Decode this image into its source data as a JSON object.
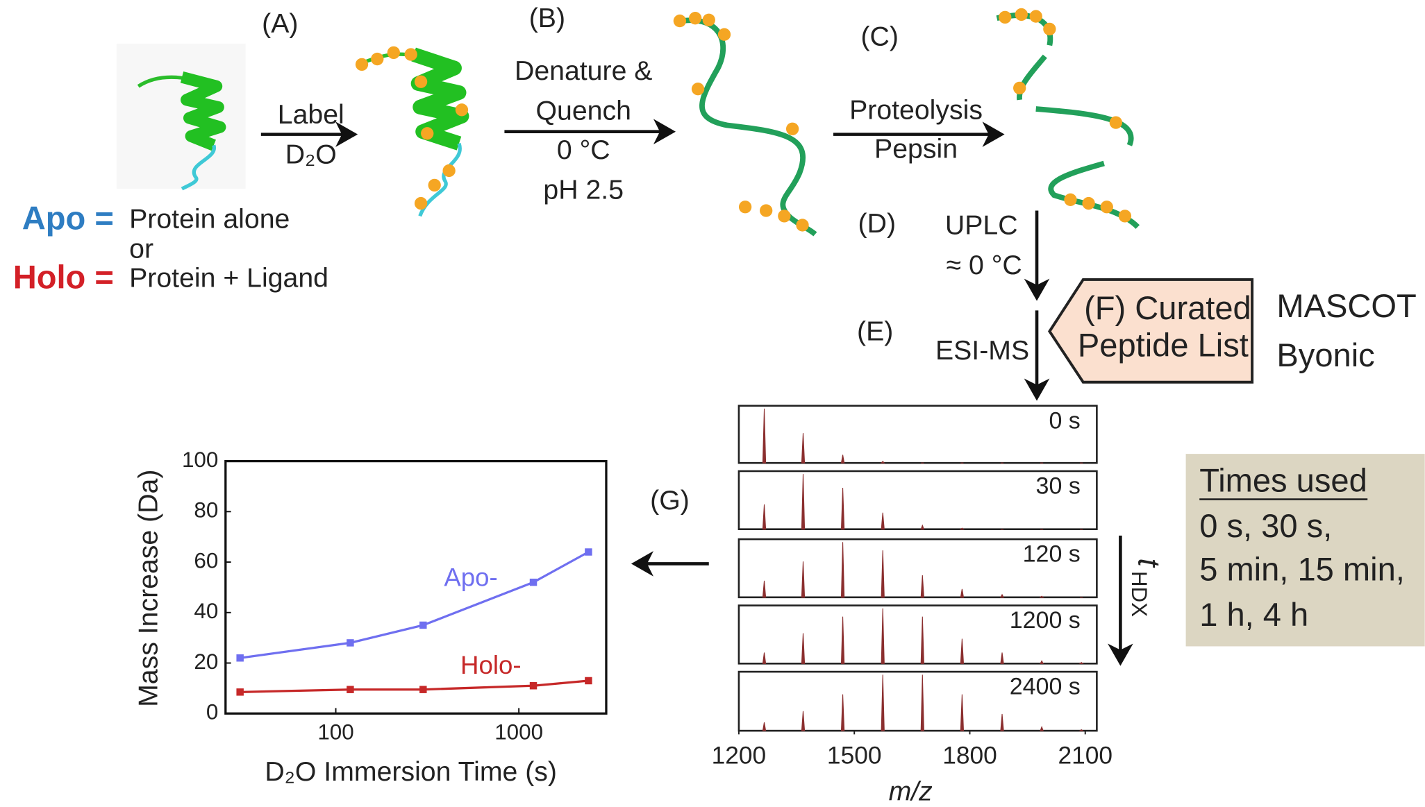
{
  "diagram": {
    "steps": {
      "a": "(A)",
      "b": "(B)",
      "c": "(C)",
      "d": "(D)",
      "e": "(E)",
      "g": "(G)"
    },
    "label_step": [
      "Label",
      "D₂O"
    ],
    "quench_step": [
      "Denature &",
      "Quench",
      "0 °C",
      "pH 2.5"
    ],
    "digest_step": [
      "Proteolysis",
      "Pepsin"
    ],
    "uplc_step": [
      "UPLC",
      "≈ 0 °C"
    ],
    "ms_step": "ESI-MS",
    "peptide_list": [
      "(F) Curated",
      "Peptide List"
    ],
    "search_tools": [
      "MASCOT",
      "Byonic"
    ],
    "legend": {
      "apo": "Apo =",
      "apo_text": "Protein alone",
      "or": "or",
      "holo": "Holo =",
      "holo_text": "Protein + Ligand"
    },
    "times_box": {
      "title": "Times used",
      "lines": [
        "0 s, 30 s,",
        "5 min, 15 min,",
        "1 h, 4 h"
      ]
    },
    "time_axis": {
      "symbol": "t",
      "subscript": "HDX"
    }
  },
  "chart_data": [
    {
      "type": "line",
      "log_x": true,
      "x_label": "D₂O Immersion Time (s)",
      "y_label": "Mass Increase (Da)",
      "x": [
        30,
        120,
        300,
        1200,
        2400
      ],
      "xlim": [
        25,
        3000
      ],
      "xticks": [
        100,
        1000
      ],
      "ylim": [
        0,
        100
      ],
      "yticks": [
        0,
        20,
        40,
        60,
        80,
        100
      ],
      "series": [
        {
          "name": "Apo-",
          "color": "#6f6ff0",
          "values": [
            22,
            28,
            35,
            52,
            64
          ]
        },
        {
          "name": "Holo-",
          "color": "#c62828",
          "values": [
            8.5,
            9.5,
            9.5,
            11,
            13
          ]
        }
      ]
    },
    {
      "type": "stem",
      "x_label": "m/z",
      "color": "#8b2f2f",
      "x": [
        1266,
        1367,
        1470,
        1574,
        1677,
        1780,
        1884,
        1987,
        2090
      ],
      "xlim": [
        1200,
        2130
      ],
      "xticks": [
        1200,
        1500,
        1800,
        2100
      ],
      "series": [
        {
          "name": "0 s",
          "values": [
            1.0,
            0.55,
            0.15,
            0.03,
            0,
            0,
            0,
            0,
            0
          ]
        },
        {
          "name": "30 s",
          "values": [
            0.45,
            1.0,
            0.75,
            0.3,
            0.07,
            0.02,
            0,
            0,
            0
          ]
        },
        {
          "name": "120 s",
          "values": [
            0.3,
            0.65,
            1.0,
            0.85,
            0.4,
            0.15,
            0.05,
            0.02,
            0
          ]
        },
        {
          "name": "1200 s",
          "values": [
            0.2,
            0.55,
            0.85,
            1.0,
            0.85,
            0.45,
            0.2,
            0.05,
            0.02
          ]
        },
        {
          "name": "2400 s",
          "values": [
            0.15,
            0.35,
            0.65,
            1.0,
            1.0,
            0.65,
            0.3,
            0.07,
            0.02
          ]
        }
      ]
    }
  ]
}
